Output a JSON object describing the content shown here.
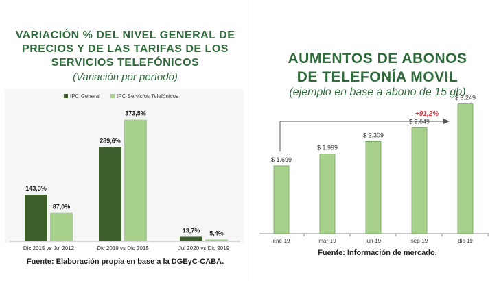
{
  "left": {
    "title": "VARIACIÓN % DEL NIVEL GENERAL DE PRECIOS Y DE LAS TARIFAS DE LOS SERVICIOS TELEFÓNICOS",
    "subtitle": "(Variación por período)",
    "source": "Fuente: Elaboración propia en base a la DGEyC-CABA."
  },
  "right": {
    "title_line1": "AUMENTOS DE ABONOS",
    "title_line2": "DE TELEFONÍA MOVIL",
    "subtitle": "(ejemplo en base a abono de 15 gb)",
    "source": "Fuente: Información de mercado."
  },
  "chart_data": [
    {
      "type": "bar",
      "categories": [
        "Dic 2015 vs Jul 2012",
        "Dic 2019 vs Dic 2015",
        "Jul 2020 vs Dic 2019"
      ],
      "series": [
        {
          "name": "IPC General",
          "values": [
            143.3,
            289.6,
            13.7
          ],
          "labels": [
            "143,3%",
            "289,6%",
            "13,7%"
          ],
          "color": "#3c5f2b"
        },
        {
          "name": "IPC Servicios Telefónicos",
          "values": [
            87.0,
            373.5,
            5.4
          ],
          "labels": [
            "87,0%",
            "373,5%",
            "5,4%"
          ],
          "color": "#a8d08d"
        }
      ],
      "ylim": [
        0,
        400
      ],
      "legend": "top-left",
      "grid": false
    },
    {
      "type": "bar",
      "categories": [
        "ene-19",
        "mar-19",
        "jun-19",
        "sep-19",
        "dic-19"
      ],
      "values": [
        1699,
        1999,
        2309,
        2649,
        3249
      ],
      "labels": [
        "$ 1.699",
        "$ 1.999",
        "$ 2.309",
        "$ 2.649",
        "$ 3.249"
      ],
      "color": "#a8d08d",
      "annotation": "+91,2%",
      "annotation_color": "#e0303a",
      "ylim": [
        0,
        3500
      ],
      "grid": false
    }
  ]
}
